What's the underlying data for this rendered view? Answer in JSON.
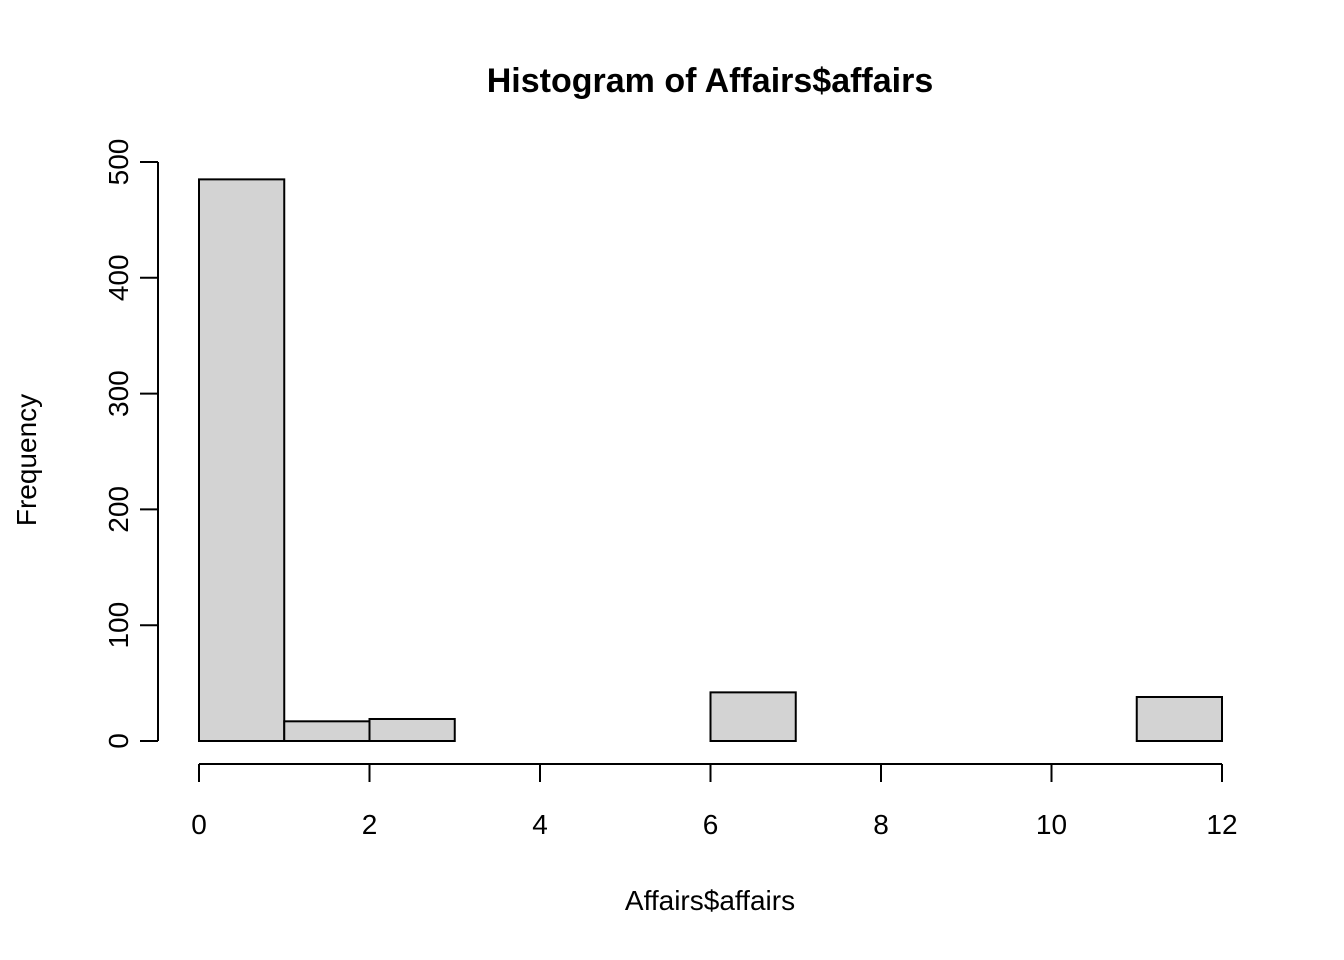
{
  "chart_data": {
    "type": "bar",
    "title": "Histogram of Affairs$affairs",
    "xlabel": "Affairs$affairs",
    "ylabel": "Frequency",
    "bins": [
      {
        "x0": 0,
        "x1": 1,
        "count": 485
      },
      {
        "x0": 1,
        "x1": 2,
        "count": 17
      },
      {
        "x0": 2,
        "x1": 3,
        "count": 19
      },
      {
        "x0": 3,
        "x1": 4,
        "count": 0
      },
      {
        "x0": 4,
        "x1": 5,
        "count": 0
      },
      {
        "x0": 5,
        "x1": 6,
        "count": 0
      },
      {
        "x0": 6,
        "x1": 7,
        "count": 42
      },
      {
        "x0": 7,
        "x1": 8,
        "count": 0
      },
      {
        "x0": 8,
        "x1": 9,
        "count": 0
      },
      {
        "x0": 9,
        "x1": 10,
        "count": 0
      },
      {
        "x0": 10,
        "x1": 11,
        "count": 0
      },
      {
        "x0": 11,
        "x1": 12,
        "count": 38
      }
    ],
    "xticks": [
      0,
      2,
      4,
      6,
      8,
      10,
      12
    ],
    "yticks": [
      0,
      100,
      200,
      300,
      400,
      500
    ],
    "xlim": [
      0,
      12
    ],
    "ylim": [
      0,
      500
    ],
    "bar_color": "#d3d3d3",
    "grid": false,
    "legend": "none"
  }
}
